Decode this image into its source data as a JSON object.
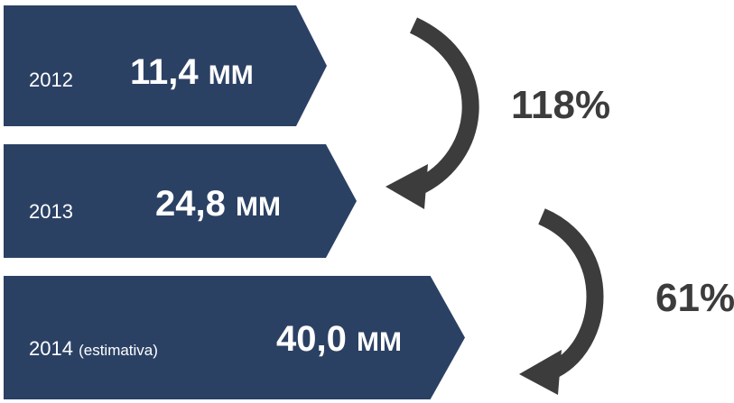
{
  "bars": [
    {
      "year": "2012",
      "note": "",
      "value": "11,4",
      "unit": "MM"
    },
    {
      "year": "2013",
      "note": "",
      "value": "24,8",
      "unit": "MM"
    },
    {
      "year": "2014",
      "note": "(estimativa)",
      "value": "40,0",
      "unit": "MM"
    }
  ],
  "growth": [
    {
      "label": "118%"
    },
    {
      "label": "61%"
    }
  ],
  "colors": {
    "bar": "#2b4164",
    "text_on_bar": "#ffffff",
    "arrow": "#3c3c3c",
    "percent": "#3c3c3c"
  }
}
